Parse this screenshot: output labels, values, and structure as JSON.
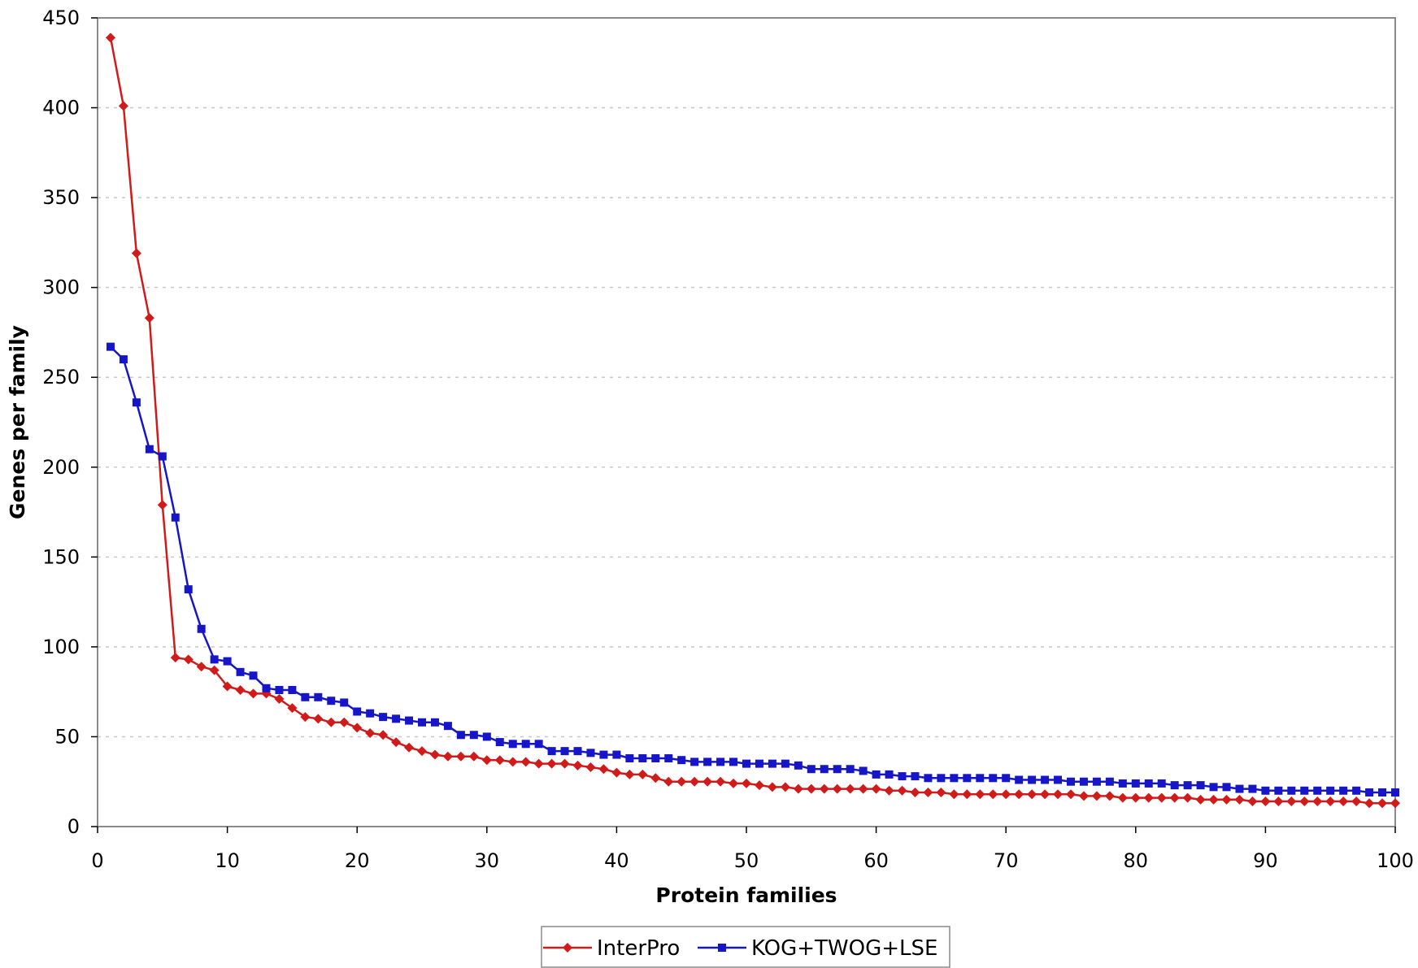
{
  "chart_data": {
    "type": "line",
    "xlabel": "Protein families",
    "ylabel": "Genes per family",
    "xlim": [
      0,
      100
    ],
    "ylim": [
      0,
      450
    ],
    "xticks": [
      "0",
      "10",
      "20",
      "30",
      "40",
      "50",
      "60",
      "70",
      "80",
      "90",
      "100"
    ],
    "yticks": [
      "0",
      "50",
      "100",
      "150",
      "200",
      "250",
      "300",
      "350",
      "400",
      "450"
    ],
    "grid": "horizontal-dashed",
    "legend_position": "bottom",
    "x": [
      1,
      2,
      3,
      4,
      5,
      6,
      7,
      8,
      9,
      10,
      11,
      12,
      13,
      14,
      15,
      16,
      17,
      18,
      19,
      20,
      21,
      22,
      23,
      24,
      25,
      26,
      27,
      28,
      29,
      30,
      31,
      32,
      33,
      34,
      35,
      36,
      37,
      38,
      39,
      40,
      41,
      42,
      43,
      44,
      45,
      46,
      47,
      48,
      49,
      50,
      51,
      52,
      53,
      54,
      55,
      56,
      57,
      58,
      59,
      60,
      61,
      62,
      63,
      64,
      65,
      66,
      67,
      68,
      69,
      70,
      71,
      72,
      73,
      74,
      75,
      76,
      77,
      78,
      79,
      80,
      81,
      82,
      83,
      84,
      85,
      86,
      87,
      88,
      89,
      90,
      91,
      92,
      93,
      94,
      95,
      96,
      97,
      98,
      99,
      100
    ],
    "series": [
      {
        "name": "InterPro",
        "color": "#d11a1a",
        "marker": "diamond",
        "values": [
          439,
          401,
          319,
          283,
          179,
          94,
          93,
          89,
          87,
          78,
          76,
          74,
          74,
          71,
          66,
          61,
          60,
          58,
          58,
          55,
          52,
          51,
          47,
          44,
          42,
          40,
          39,
          39,
          39,
          37,
          37,
          36,
          36,
          35,
          35,
          35,
          34,
          33,
          32,
          30,
          29,
          29,
          27,
          25,
          25,
          25,
          25,
          25,
          24,
          24,
          23,
          22,
          22,
          21,
          21,
          21,
          21,
          21,
          21,
          21,
          20,
          20,
          19,
          19,
          19,
          18,
          18,
          18,
          18,
          18,
          18,
          18,
          18,
          18,
          18,
          17,
          17,
          17,
          16,
          16,
          16,
          16,
          16,
          16,
          15,
          15,
          15,
          15,
          14,
          14,
          14,
          14,
          14,
          14,
          14,
          14,
          14,
          13,
          13,
          13
        ]
      },
      {
        "name": "KOG+TWOG+LSE",
        "color": "#1616c8",
        "marker": "square",
        "values": [
          267,
          260,
          236,
          210,
          206,
          172,
          132,
          110,
          93,
          92,
          86,
          84,
          77,
          76,
          76,
          72,
          72,
          70,
          69,
          64,
          63,
          61,
          60,
          59,
          58,
          58,
          56,
          51,
          51,
          50,
          47,
          46,
          46,
          46,
          42,
          42,
          42,
          41,
          40,
          40,
          38,
          38,
          38,
          38,
          37,
          36,
          36,
          36,
          36,
          35,
          35,
          35,
          35,
          34,
          32,
          32,
          32,
          32,
          31,
          29,
          29,
          28,
          28,
          27,
          27,
          27,
          27,
          27,
          27,
          27,
          26,
          26,
          26,
          26,
          25,
          25,
          25,
          25,
          24,
          24,
          24,
          24,
          23,
          23,
          23,
          22,
          22,
          21,
          21,
          20,
          20,
          20,
          20,
          20,
          20,
          20,
          20,
          19,
          19,
          19
        ]
      }
    ]
  }
}
